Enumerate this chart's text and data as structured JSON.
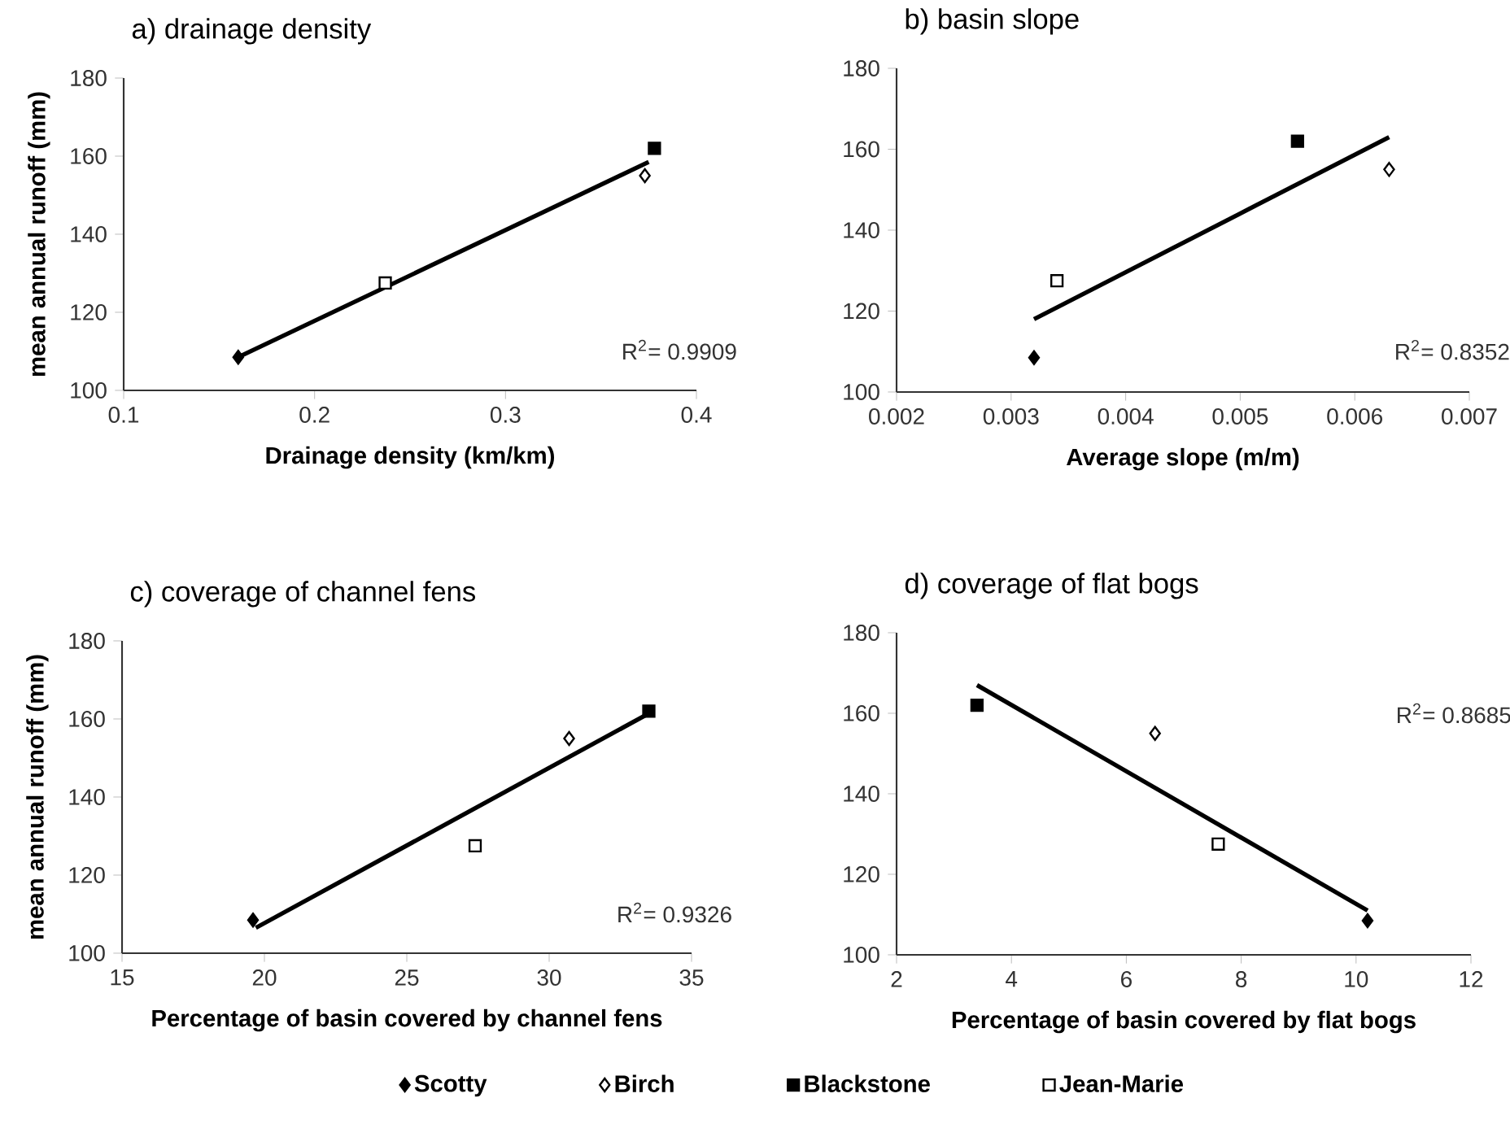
{
  "chart_data": [
    {
      "type": "scatter",
      "title": "a) drainage density",
      "xlabel": "Drainage density (km/km)",
      "ylabel": "mean annual runoff (mm)",
      "xlim": [
        0.1,
        0.4
      ],
      "xticks": [
        0.1,
        0.2,
        0.3,
        0.4
      ],
      "ylim": [
        100,
        180
      ],
      "yticks": [
        100,
        120,
        140,
        160,
        180
      ],
      "annotations": [
        "R$^{2}$= 0.9909"
      ],
      "series": [
        {
          "x": [
            0.16
          ],
          "values": [
            108.5
          ],
          "color": "#000000",
          "marker": "diamond"
        },
        {
          "x": [
            0.373
          ],
          "values": [
            155
          ],
          "color": "#000000",
          "marker": "diamond open"
        },
        {
          "x": [
            0.378
          ],
          "values": [
            162
          ],
          "color": "#000000",
          "marker": "square"
        },
        {
          "x": [
            0.237
          ],
          "values": [
            127.5
          ],
          "color": "#000000",
          "marker": "square open"
        },
        {
          "type": "line",
          "x": [
            0.16,
            0.375
          ],
          "values": [
            108.5,
            158.5
          ],
          "color": "#000000"
        }
      ]
    },
    {
      "type": "scatter",
      "title": "b) basin slope",
      "xlabel": "Average slope (m/m)",
      "xlim": [
        0.002,
        0.007
      ],
      "xticks": [
        0.002,
        0.003,
        0.004,
        0.005,
        0.006,
        0.007
      ],
      "ylim": [
        100,
        180
      ],
      "yticks": [
        100,
        120,
        140,
        160,
        180
      ],
      "annotations": [
        "R$^{2}$= 0.8352"
      ],
      "series": [
        {
          "x": [
            0.0032
          ],
          "values": [
            108.5
          ],
          "color": "#000000",
          "marker": "diamond"
        },
        {
          "x": [
            0.0063
          ],
          "values": [
            155
          ],
          "color": "#000000",
          "marker": "diamond open"
        },
        {
          "x": [
            0.0055
          ],
          "values": [
            162
          ],
          "color": "#000000",
          "marker": "square"
        },
        {
          "x": [
            0.0034
          ],
          "values": [
            127.5
          ],
          "color": "#000000",
          "marker": "square open"
        },
        {
          "type": "line",
          "x": [
            0.0032,
            0.0063
          ],
          "values": [
            118,
            163
          ],
          "color": "#000000"
        }
      ]
    },
    {
      "type": "scatter",
      "title": "c) coverage of channel fens",
      "xlabel": "Percentage of basin covered by channel fens",
      "ylabel": "mean annual runoff (mm)",
      "xlim": [
        15,
        35
      ],
      "xticks": [
        15,
        20,
        25,
        30,
        35
      ],
      "ylim": [
        100,
        180
      ],
      "yticks": [
        100,
        120,
        140,
        160,
        180
      ],
      "annotations": [
        "R$^{2}$= 0.9326"
      ],
      "legend": "bottom",
      "series": [
        {
          "name": "Scotty",
          "x": [
            19.6
          ],
          "values": [
            108.5
          ],
          "color": "#000000",
          "marker": "diamond"
        },
        {
          "name": "Birch",
          "x": [
            30.7
          ],
          "values": [
            155
          ],
          "color": "#000000",
          "marker": "diamond open"
        },
        {
          "name": "Blackstone",
          "x": [
            33.5
          ],
          "values": [
            162
          ],
          "color": "#000000",
          "marker": "square"
        },
        {
          "name": "Jean-Marie",
          "x": [
            27.4
          ],
          "values": [
            127.5
          ],
          "color": "#000000",
          "marker": "square open"
        },
        {
          "type": "line",
          "x": [
            19.7,
            33.4
          ],
          "values": [
            106.5,
            161
          ],
          "color": "#000000"
        }
      ]
    },
    {
      "type": "scatter",
      "title": "d) coverage of flat bogs",
      "xlabel": "Percentage of basin covered by flat bogs",
      "xlim": [
        2,
        12
      ],
      "xticks": [
        2,
        4,
        6,
        8,
        10,
        12
      ],
      "ylim": [
        100,
        180
      ],
      "yticks": [
        100,
        120,
        140,
        160,
        180
      ],
      "annotations": [
        "R$^{2}$= 0.8685"
      ],
      "series": [
        {
          "x": [
            10.2
          ],
          "values": [
            108.5
          ],
          "color": "#000000",
          "marker": "diamond"
        },
        {
          "x": [
            6.5
          ],
          "values": [
            155
          ],
          "color": "#000000",
          "marker": "diamond open"
        },
        {
          "x": [
            3.4
          ],
          "values": [
            162
          ],
          "color": "#000000",
          "marker": "square"
        },
        {
          "x": [
            7.6
          ],
          "values": [
            127.5
          ],
          "color": "#000000",
          "marker": "square open"
        },
        {
          "type": "line",
          "x": [
            3.4,
            10.2
          ],
          "values": [
            167,
            111
          ],
          "color": "#000000"
        }
      ]
    }
  ]
}
